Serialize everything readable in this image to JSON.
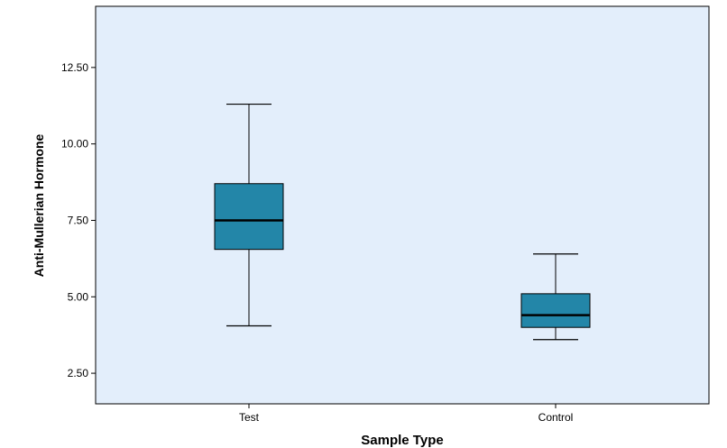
{
  "chart_data": {
    "type": "box",
    "xlabel": "Sample Type",
    "ylabel": "Anti-Mullerian Hormone",
    "categories": [
      "Test",
      "Control"
    ],
    "ylim": [
      1.5,
      14.5
    ],
    "yticks": [
      2.5,
      5.0,
      7.5,
      10.0,
      12.5
    ],
    "ytick_labels": [
      "2.50",
      "5.00",
      "7.50",
      "10.00",
      "12.50"
    ],
    "boxes": [
      {
        "category": "Test",
        "min": 4.05,
        "q1": 6.55,
        "median": 7.5,
        "q3": 8.7,
        "max": 11.3
      },
      {
        "category": "Control",
        "min": 3.6,
        "q1": 4.0,
        "median": 4.4,
        "q3": 5.1,
        "max": 6.4
      }
    ],
    "grid": false,
    "colors": {
      "plot_background": "#e3eefb",
      "box_fill": "#2386a8",
      "box_stroke": "#000000",
      "median": "#000000",
      "whisker": "#000000"
    }
  }
}
